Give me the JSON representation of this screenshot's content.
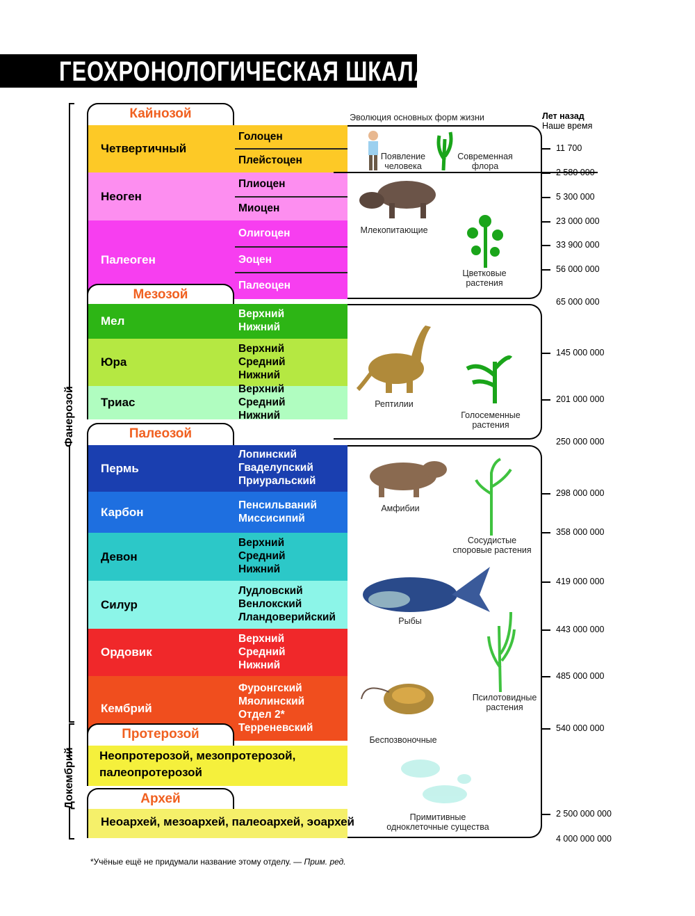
{
  "title": "ГЕОХРОНОЛОГИЧЕСКАЯ ШКАЛА",
  "eons": [
    "Фанерозой",
    "Докембрий"
  ],
  "eras": [
    {
      "name": "Кайнозой",
      "periods": [
        {
          "name": "Четвертичный",
          "divisions": [
            "Голоцен",
            "Плейстоцен"
          ]
        },
        {
          "name": "Неоген",
          "divisions": [
            "Плиоцен",
            "Миоцен"
          ]
        },
        {
          "name": "Палеоген",
          "divisions": [
            "Олигоцен",
            "Эоцен",
            "Палеоцен"
          ]
        }
      ]
    },
    {
      "name": "Мезозой",
      "periods": [
        {
          "name": "Мел",
          "divisions": [
            "Верхний",
            "Нижний"
          ]
        },
        {
          "name": "Юра",
          "divisions": [
            "Верхний",
            "Средний",
            "Нижний"
          ]
        },
        {
          "name": "Триас",
          "divisions": [
            "Верхний",
            "Средний",
            "Нижний"
          ]
        }
      ]
    },
    {
      "name": "Палеозой",
      "periods": [
        {
          "name": "Пермь",
          "divisions": [
            "Лопинский",
            "Гваделупский",
            "Приуральский"
          ]
        },
        {
          "name": "Карбон",
          "divisions": [
            "Пенсильваний",
            "Миссисипий"
          ]
        },
        {
          "name": "Девон",
          "divisions": [
            "Верхний",
            "Средний",
            "Нижний"
          ]
        },
        {
          "name": "Силур",
          "divisions": [
            "Лудловский",
            "Венлокский",
            "Лландоверийский"
          ]
        },
        {
          "name": "Ордовик",
          "divisions": [
            "Верхний",
            "Средний",
            "Нижний"
          ]
        },
        {
          "name": "Кембрий",
          "divisions": [
            "Фуронгский",
            "Мяолинский",
            "Отдел 2*",
            "Терреневский"
          ]
        }
      ]
    },
    {
      "name": "Протерозой",
      "lines": [
        "Неопротерозой, мезопротерозой,",
        "палеопротерозой"
      ]
    },
    {
      "name": "Архей",
      "lines": [
        "Неоархей, мезоархей, палеоархей, эоархей"
      ]
    }
  ],
  "life": {
    "title": "Эволюция основных форм жизни",
    "labels": [
      [
        "Появление",
        "человека"
      ],
      [
        "Современная",
        "флора"
      ],
      [
        "Млекопитающие"
      ],
      [
        "Цветковые",
        "растения"
      ],
      [
        "Рептилии"
      ],
      [
        "Голосеменные",
        "растения"
      ],
      [
        "Амфибии"
      ],
      [
        "Сосудистые",
        "споровые растения"
      ],
      [
        "Рыбы"
      ],
      [
        "Псилотовидные",
        "растения"
      ],
      [
        "Беспозвоночные"
      ],
      [
        "Примитивные",
        "одноклеточные существа"
      ]
    ]
  },
  "time": {
    "title": "Лет назад",
    "present": "Наше время",
    "labels": [
      "11 700",
      "2 580 000",
      "5 300 000",
      "23 000 000",
      "33 900 000",
      "56 000 000",
      "65 000 000",
      "145 000 000",
      "201 000 000",
      "250 000 000",
      "298 000 000",
      "358 000 000",
      "419 000 000",
      "443 000 000",
      "485 000 000",
      "540 000 000",
      "2 500 000 000",
      "4 000 000 000"
    ]
  },
  "footnote": {
    "text": "*Учёные ещё не придумали название этому отделу. —",
    "source": "Прим. ред."
  }
}
